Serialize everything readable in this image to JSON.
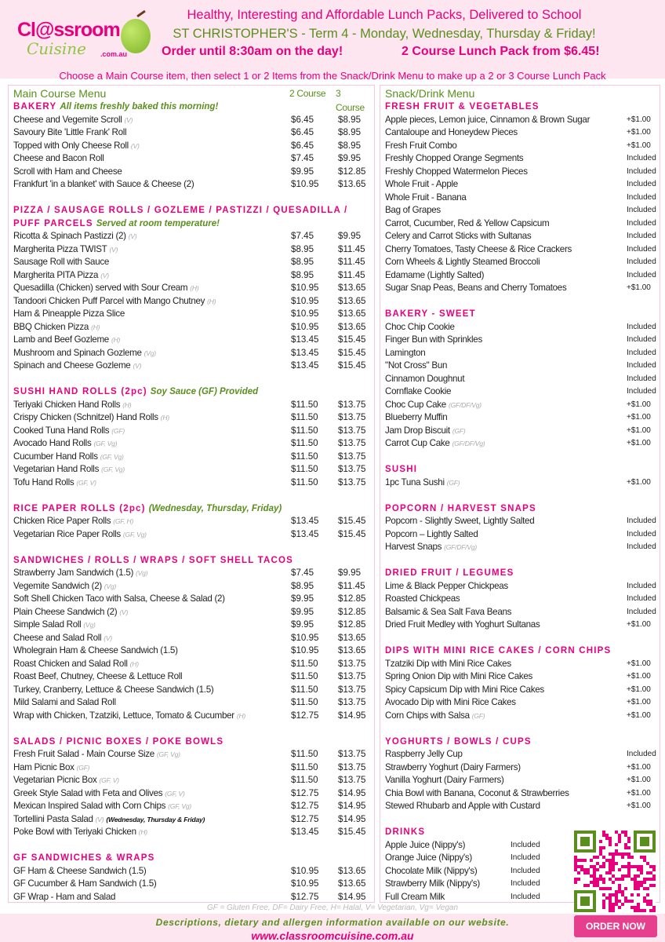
{
  "header": {
    "logo_text": "Classroom Cuisine .com.au",
    "line1": "Healthy, Interesting and Affordable Lunch Packs, Delivered to School",
    "line2": "ST CHRISTOPHER'S -  Term 4 - Monday, Wednesday, Thursday & Friday!",
    "line3a": "Order until 8:30am on the day!",
    "line3b": "2 Course Lunch Pack from $6.45!",
    "intro": "Choose a Main Course item, then select 1 or 2 Items from the Snack/Drink Menu to make up a 2 or 3 Course Lunch Pack"
  },
  "colors": {
    "pink": "#e6007e",
    "green": "#5a8f1e",
    "band": "#fde6ef"
  },
  "main_menu": {
    "title": "Main Course Menu",
    "col2": "2 Course",
    "col3": "3 Course",
    "sections": [
      {
        "title": "BAKERY",
        "note": "All items freshly baked this morning!",
        "items": [
          {
            "name": "Cheese and Vegemite Scroll",
            "tag": "(V)",
            "p2": "$6.45",
            "p3": "$8.95"
          },
          {
            "name": "Savoury Bite 'Little Frank' Roll",
            "tag": "",
            "p2": "$6.45",
            "p3": "$8.95"
          },
          {
            "name": "Topped with Only Cheese Roll",
            "tag": "(V)",
            "p2": "$6.45",
            "p3": "$8.95"
          },
          {
            "name": "Cheese and Bacon Roll",
            "tag": "",
            "p2": "$7.45",
            "p3": "$9.95"
          },
          {
            "name": "Scroll with Ham and Cheese",
            "tag": "",
            "p2": "$9.95",
            "p3": "$12.85"
          },
          {
            "name": "Frankfurt 'in a blanket' with Sauce & Cheese (2)",
            "tag": "",
            "p2": "$10.95",
            "p3": "$13.65"
          }
        ]
      },
      {
        "title": "PIZZA / SAUSAGE ROLLS / GOZLEME / PASTIZZI / QUESADILLA /",
        "title2": "PUFF PARCELS",
        "note": "Served at room temperature!",
        "items": [
          {
            "name": "Ricotta & Spinach Pastizzi (2)",
            "tag": "(V)",
            "p2": "$7.45",
            "p3": "$9.95"
          },
          {
            "name": "Margherita Pizza TWIST",
            "tag": "(V)",
            "p2": "$8.95",
            "p3": "$11.45"
          },
          {
            "name": "Sausage Roll with Sauce",
            "tag": "",
            "p2": "$8.95",
            "p3": "$11.45"
          },
          {
            "name": "Margherita PITA Pizza",
            "tag": "(V)",
            "p2": "$8.95",
            "p3": "$11.45"
          },
          {
            "name": "Quesadilla (Chicken) served with Sour Cream",
            "tag": "(H)",
            "p2": "$10.95",
            "p3": "$13.65"
          },
          {
            "name": "Tandoori Chicken Puff Parcel with Mango Chutney",
            "tag": "(H)",
            "p2": "$10.95",
            "p3": "$13.65"
          },
          {
            "name": "Ham & Pineapple Pizza Slice",
            "tag": "",
            "p2": "$10.95",
            "p3": "$13.65"
          },
          {
            "name": "BBQ Chicken Pizza",
            "tag": "(H)",
            "p2": "$10.95",
            "p3": "$13.65"
          },
          {
            "name": "Lamb and Beef Gozleme",
            "tag": "(H)",
            "p2": "$13.45",
            "p3": "$15.45"
          },
          {
            "name": "Mushroom and Spinach Gozleme",
            "tag": "(Vg)",
            "p2": "$13.45",
            "p3": "$15.45"
          },
          {
            "name": "Spinach and Cheese Gozleme",
            "tag": "(V)",
            "p2": "$13.45",
            "p3": "$15.45"
          }
        ]
      },
      {
        "title": "SUSHI HAND ROLLS (2pc)",
        "note": "Soy Sauce (GF) Provided",
        "items": [
          {
            "name": "Teriyaki Chicken Hand Rolls",
            "tag": "(H)",
            "p2": "$11.50",
            "p3": "$13.75"
          },
          {
            "name": "Crispy Chicken (Schnitzel)  Hand Rolls",
            "tag": "(H)",
            "p2": "$11.50",
            "p3": "$13.75"
          },
          {
            "name": "Cooked Tuna Hand Rolls",
            "tag": "(GF)",
            "p2": "$11.50",
            "p3": "$13.75"
          },
          {
            "name": "Avocado Hand Rolls",
            "tag": "(GF, Vg)",
            "p2": "$11.50",
            "p3": "$13.75"
          },
          {
            "name": "Cucumber Hand Rolls",
            "tag": "(GF, Vg)",
            "p2": "$11.50",
            "p3": "$13.75"
          },
          {
            "name": "Vegetarian Hand Rolls",
            "tag": "(GF, Vg)",
            "p2": "$11.50",
            "p3": "$13.75"
          },
          {
            "name": "Tofu Hand Rolls",
            "tag": "(GF, V)",
            "p2": "$11.50",
            "p3": "$13.75"
          }
        ]
      },
      {
        "title": "RICE PAPER ROLLS (2pc)",
        "note": "(Wednesday, Thursday, Friday)",
        "items": [
          {
            "name": "Chicken Rice Paper Rolls",
            "tag": "(GF, H)",
            "p2": "$13.45",
            "p3": "$15.45"
          },
          {
            "name": "Vegetarian Rice Paper Rolls",
            "tag": "(GF, Vg)",
            "p2": "$13.45",
            "p3": "$15.45"
          }
        ]
      },
      {
        "title": "SANDWICHES / ROLLS / WRAPS / SOFT SHELL TACOS",
        "note": "",
        "items": [
          {
            "name": "Strawberry Jam Sandwich (1.5)",
            "tag": "(Vg)",
            "p2": "$7.45",
            "p3": "$9.95"
          },
          {
            "name": "Vegemite Sandwich (2)",
            "tag": "(Vg)",
            "p2": "$8.95",
            "p3": "$11.45"
          },
          {
            "name": "Soft Shell Chicken Taco with Salsa, Cheese & Salad (2)",
            "tag": "",
            "p2": "$9.95",
            "p3": "$12.85"
          },
          {
            "name": "Plain Cheese Sandwich (2)",
            "tag": "(V)",
            "p2": "$9.95",
            "p3": "$12.85"
          },
          {
            "name": "Simple Salad Roll",
            "tag": "(Vg)",
            "p2": "$9.95",
            "p3": "$12.85"
          },
          {
            "name": "Cheese and Salad Roll",
            "tag": "(V)",
            "p2": "$10.95",
            "p3": "$13.65"
          },
          {
            "name": "Wholegrain Ham & Cheese Sandwich (1.5)",
            "tag": "",
            "p2": "$10.95",
            "p3": "$13.65"
          },
          {
            "name": "Roast Chicken and Salad Roll",
            "tag": "(H)",
            "p2": "$11.50",
            "p3": "$13.75"
          },
          {
            "name": "Roast Beef, Chutney, Cheese & Lettuce Roll",
            "tag": "",
            "p2": "$11.50",
            "p3": "$13.75"
          },
          {
            "name": "Turkey, Cranberry, Lettuce & Cheese Sandwich (1.5)",
            "tag": "",
            "p2": "$11.50",
            "p3": "$13.75"
          },
          {
            "name": "Mild Salami and Salad Roll",
            "tag": "",
            "p2": "$11.50",
            "p3": "$13.75"
          },
          {
            "name": "Wrap with Chicken, Tzatziki, Lettuce, Tomato & Cucumber",
            "tag": "(H)",
            "p2": "$12.75",
            "p3": "$14.95"
          }
        ]
      },
      {
        "title": "SALADS / PICNIC BOXES / POKE BOWLS",
        "note": "",
        "items": [
          {
            "name": "Fresh Fruit Salad - Main Course Size",
            "tag": "(GF, Vg)",
            "p2": "$11.50",
            "p3": "$13.75"
          },
          {
            "name": "Ham Picnic Box",
            "tag": "(GF)",
            "p2": "$11.50",
            "p3": "$13.75"
          },
          {
            "name": "Vegetarian Picnic Box",
            "tag": "(GF, V)",
            "p2": "$11.50",
            "p3": "$13.75"
          },
          {
            "name": "Greek Style Salad with Feta and Olives",
            "tag": "(GF, V)",
            "p2": "$12.75",
            "p3": "$14.95"
          },
          {
            "name": "Mexican Inspired Salad with Corn Chips",
            "tag": "(GF, Vg)",
            "p2": "$12.75",
            "p3": "$14.95"
          },
          {
            "name": "Tortellini Pasta Salad",
            "tag": "(V)",
            "tag2": "(Wednesday, Thursday & Friday)",
            "p2": "$12.75",
            "p3": "$14.95"
          },
          {
            "name": "Poke Bowl with Teriyaki Chicken",
            "tag": "(H)",
            "p2": "$13.45",
            "p3": "$15.45"
          }
        ]
      },
      {
        "title": "GF SANDWICHES & WRAPS",
        "note": "",
        "items": [
          {
            "name": "GF Ham & Cheese Sandwich (1.5)",
            "tag": "",
            "p2": "$10.95",
            "p3": "$13.65"
          },
          {
            "name": "GF Cucumber & Ham Sandwich (1.5)",
            "tag": "",
            "p2": "$10.95",
            "p3": "$13.65"
          },
          {
            "name": "GF Wrap - Ham and Salad",
            "tag": "",
            "p2": "$12.75",
            "p3": "$14.95"
          }
        ]
      }
    ]
  },
  "snack_menu": {
    "title": "Snack/Drink Menu",
    "sections": [
      {
        "title": "FRESH FRUIT & VEGETABLES",
        "items": [
          {
            "name": "Apple pieces, Lemon juice, Cinnamon & Brown Sugar",
            "tag": "",
            "price": "+$1.00"
          },
          {
            "name": "Cantaloupe and Honeydew Pieces",
            "tag": "",
            "price": "+$1.00"
          },
          {
            "name": "Fresh Fruit Combo",
            "tag": "",
            "price": "+$1.00"
          },
          {
            "name": "Freshly Chopped Orange Segments",
            "tag": "",
            "price": "Included"
          },
          {
            "name": "Freshly Chopped Watermelon Pieces",
            "tag": "",
            "price": "Included"
          },
          {
            "name": "Whole Fruit - Apple",
            "tag": "",
            "price": "Included"
          },
          {
            "name": "Whole Fruit - Banana",
            "tag": "",
            "price": "Included"
          },
          {
            "name": "Bag of Grapes",
            "tag": "",
            "price": "Included"
          },
          {
            "name": "Carrot, Cucumber, Red & Yellow Capsicum",
            "tag": "",
            "price": "Included"
          },
          {
            "name": "Celery and Carrot Sticks with Sultanas",
            "tag": "",
            "price": "Included"
          },
          {
            "name": "Cherry Tomatoes, Tasty Cheese & Rice Crackers",
            "tag": "",
            "price": "Included"
          },
          {
            "name": "Corn Wheels & Lightly Steamed Broccoli",
            "tag": "",
            "price": "Included"
          },
          {
            "name": "Edamame (Lightly Salted)",
            "tag": "",
            "price": "Included"
          },
          {
            "name": "Sugar Snap Peas, Beans and Cherry Tomatoes",
            "tag": "",
            "price": "+$1.00"
          }
        ]
      },
      {
        "title": "BAKERY - SWEET",
        "items": [
          {
            "name": "Choc Chip Cookie",
            "tag": "",
            "price": "Included"
          },
          {
            "name": "Finger Bun with Sprinkles",
            "tag": "",
            "price": "Included"
          },
          {
            "name": "Lamington",
            "tag": "",
            "price": "Included"
          },
          {
            "name": "\"Not Cross\" Bun",
            "tag": "",
            "price": "Included"
          },
          {
            "name": "Cinnamon Doughnut",
            "tag": "",
            "price": "Included"
          },
          {
            "name": "Cornflake Cookie",
            "tag": "",
            "price": "Included"
          },
          {
            "name": "Choc Cup Cake",
            "tag": "(GF/DF/Vg)",
            "price": "+$1.00"
          },
          {
            "name": "Blueberry Muffin",
            "tag": "",
            "price": "+$1.00"
          },
          {
            "name": "Jam Drop Biscuit",
            "tag": "(GF)",
            "price": "+$1.00"
          },
          {
            "name": "Carrot Cup Cake",
            "tag": "(GF/DF/Vg)",
            "price": "+$1.00"
          }
        ]
      },
      {
        "title": "SUSHI",
        "items": [
          {
            "name": "1pc Tuna Sushi",
            "tag": "(GF)",
            "price": "+$1.00"
          }
        ]
      },
      {
        "title": "POPCORN / HARVEST SNAPS",
        "items": [
          {
            "name": "Popcorn - Slightly Sweet, Lightly Salted",
            "tag": "",
            "price": "Included"
          },
          {
            "name": "Popcorn – Lightly Salted",
            "tag": "",
            "price": "Included"
          },
          {
            "name": "Harvest Snaps",
            "tag": "(GF/DF/Vg)",
            "price": "Included"
          }
        ]
      },
      {
        "title": "DRIED FRUIT / LEGUMES",
        "items": [
          {
            "name": "Lime & Black Pepper Chickpeas",
            "tag": "",
            "price": "Included"
          },
          {
            "name": "Roasted Chickpeas",
            "tag": "",
            "price": "Included"
          },
          {
            "name": "Balsamic & Sea Salt Fava Beans",
            "tag": "",
            "price": "Included"
          },
          {
            "name": "Dried Fruit Medley with Yoghurt Sultanas",
            "tag": "",
            "price": "+$1.00"
          }
        ]
      },
      {
        "title": "DIPS WITH MINI RICE CAKES / CORN CHIPS",
        "items": [
          {
            "name": "Tzatziki Dip with Mini Rice Cakes",
            "tag": "",
            "price": "+$1.00"
          },
          {
            "name": "Spring Onion Dip with Mini Rice Cakes",
            "tag": "",
            "price": "+$1.00"
          },
          {
            "name": "Spicy Capsicum Dip with Mini Rice Cakes",
            "tag": "",
            "price": "+$1.00"
          },
          {
            "name": "Avocado Dip with Mini Rice Cakes",
            "tag": "",
            "price": "+$1.00"
          },
          {
            "name": "Corn Chips with Salsa",
            "tag": "(GF)",
            "price": "+$1.00"
          }
        ]
      },
      {
        "title": "YOGHURTS / BOWLS / CUPS",
        "items": [
          {
            "name": "Raspberry Jelly Cup",
            "tag": "",
            "price": "Included"
          },
          {
            "name": "Strawberry Yoghurt (Dairy Farmers)",
            "tag": "",
            "price": "+$1.00"
          },
          {
            "name": "Vanilla Yoghurt (Dairy Farmers)",
            "tag": "",
            "price": "+$1.00"
          },
          {
            "name": "Chia Bowl with Banana, Coconut & Strawberries",
            "tag": "",
            "price": "+$1.00"
          },
          {
            "name": "Stewed Rhubarb and Apple with Custard",
            "tag": "",
            "price": "+$1.00"
          }
        ]
      },
      {
        "title": "DRINKS",
        "drinks": true,
        "items": [
          {
            "name": "Apple Juice (Nippy's)",
            "tag": "",
            "price": "Included"
          },
          {
            "name": "Orange Juice (Nippy's)",
            "tag": "",
            "price": "Included"
          },
          {
            "name": "Chocolate Milk (Nippy's)",
            "tag": "",
            "price": "Included"
          },
          {
            "name": "Strawberry Milk (Nippy's)",
            "tag": "",
            "price": "Included"
          },
          {
            "name": "Full Cream Milk",
            "tag": "",
            "price": "Included"
          }
        ]
      }
    ]
  },
  "footer": {
    "legend": "GF = Gluten Free, DF= Dairy Free, H= Halal, V= Vegetarian, Vg= Vegan",
    "info": "Descriptions, dietary and allergen information available on our website.",
    "website": "www.classroomcuisine.com.au",
    "order_button": "ORDER NOW",
    "qr_icon": "qr-code-icon"
  }
}
